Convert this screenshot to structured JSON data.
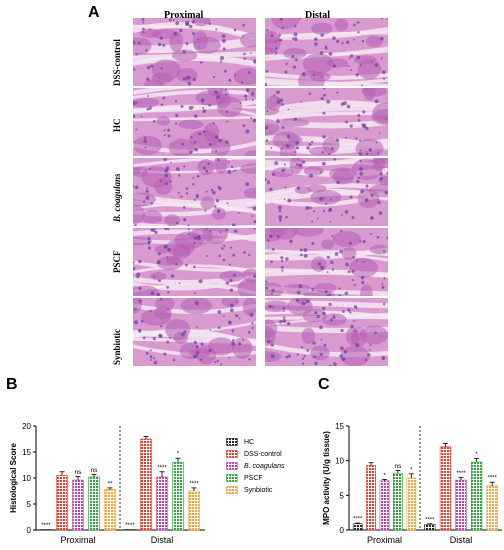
{
  "panel_labels": {
    "a": "A",
    "b": "B",
    "c": "C"
  },
  "histology": {
    "columns": [
      "Proximal",
      "Distal"
    ],
    "rows": [
      "DSS-control",
      "HC",
      "B. coagulans",
      "PSCF",
      "Synbiotic"
    ],
    "tile_colors": {
      "base": "#d99ad0",
      "tissue": "#b45fb3",
      "nuclei": "#6b3c9e",
      "lumen": "#f3e7f1"
    }
  },
  "legend": {
    "entries": [
      {
        "name": "HC",
        "color": "#222222"
      },
      {
        "name": "DSS-control",
        "color": "#e8392a"
      },
      {
        "name": "B. coagulans",
        "color": "#c13fb1"
      },
      {
        "name": "PSCF",
        "color": "#2ea43c"
      },
      {
        "name": "Synbiotic",
        "color": "#f5a23a"
      }
    ]
  },
  "chart_data": [
    {
      "type": "bar",
      "panel": "B",
      "ylabel": "Histological Score",
      "categories": [
        "Proximal",
        "Distal"
      ],
      "ylim": [
        0,
        20
      ],
      "yticks": [
        0,
        5,
        10,
        15,
        20
      ],
      "series": [
        {
          "name": "HC",
          "values": [
            0.1,
            0.1
          ],
          "errors": [
            0,
            0
          ],
          "sig": [
            "****",
            "****"
          ]
        },
        {
          "name": "DSS-control",
          "values": [
            10.5,
            17.5
          ],
          "errors": [
            0.7,
            0.5
          ],
          "sig": [
            "",
            ""
          ]
        },
        {
          "name": "B. coagulans",
          "values": [
            9.6,
            10.2
          ],
          "errors": [
            0.7,
            1.0
          ],
          "sig": [
            "ns",
            "****"
          ]
        },
        {
          "name": "PSCF",
          "values": [
            10.2,
            13.0
          ],
          "errors": [
            0.5,
            0.8
          ],
          "sig": [
            "ns",
            "*"
          ]
        },
        {
          "name": "Synbiotic",
          "values": [
            7.8,
            7.5
          ],
          "errors": [
            0.3,
            0.6
          ],
          "sig": [
            "**",
            "****"
          ]
        }
      ],
      "grid": false
    },
    {
      "type": "bar",
      "panel": "C",
      "ylabel": "MPO activity (U/g tissue)",
      "categories": [
        "Proximal",
        "Distal"
      ],
      "ylim": [
        0,
        15
      ],
      "yticks": [
        0,
        5,
        10,
        15
      ],
      "series": [
        {
          "name": "HC",
          "values": [
            0.9,
            0.8
          ],
          "errors": [
            0.1,
            0.1
          ],
          "sig": [
            "****",
            "****"
          ]
        },
        {
          "name": "DSS-control",
          "values": [
            9.3,
            12.0
          ],
          "errors": [
            0.4,
            0.5
          ],
          "sig": [
            "",
            ""
          ]
        },
        {
          "name": "B. coagulans",
          "values": [
            7.1,
            7.2
          ],
          "errors": [
            0.2,
            0.4
          ],
          "sig": [
            "*",
            "****"
          ]
        },
        {
          "name": "PSCF",
          "values": [
            8.2,
            9.8
          ],
          "errors": [
            0.4,
            0.5
          ],
          "sig": [
            "ns",
            "*"
          ]
        },
        {
          "name": "Synbiotic",
          "values": [
            7.5,
            6.4
          ],
          "errors": [
            0.6,
            0.5
          ],
          "sig": [
            "*",
            "****"
          ]
        }
      ],
      "grid": false
    }
  ]
}
